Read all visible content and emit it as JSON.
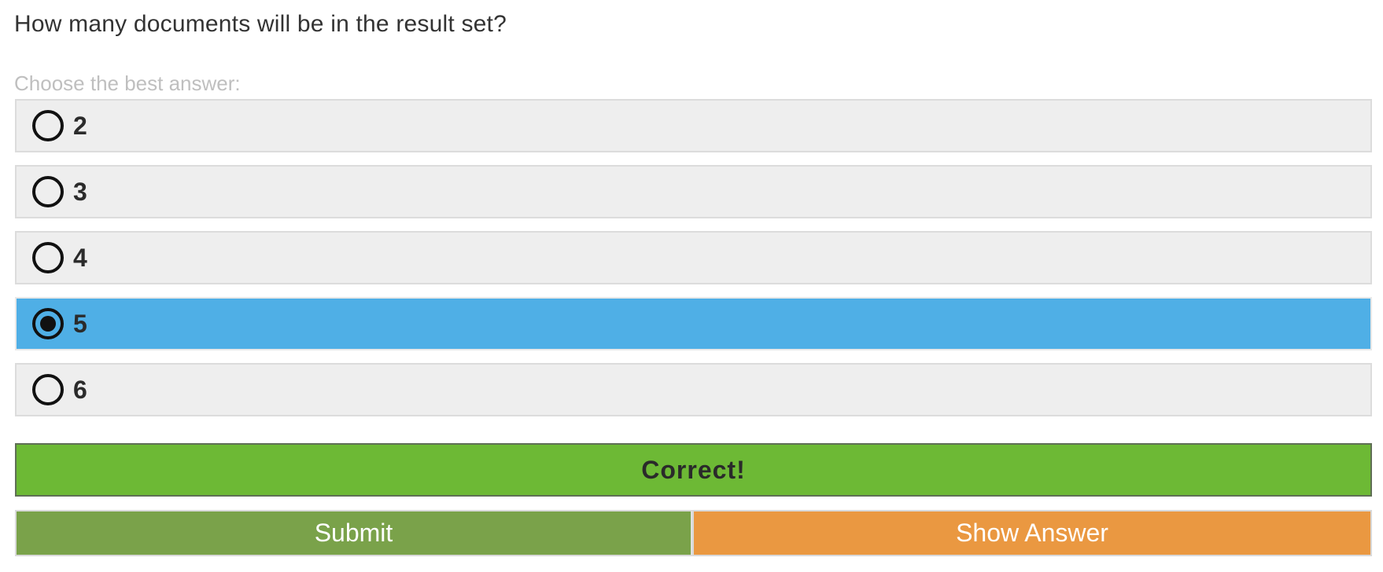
{
  "question": {
    "text": "How many documents will be in the result set?",
    "instruction": "Choose the best answer:"
  },
  "options": [
    {
      "label": "2",
      "selected": false
    },
    {
      "label": "3",
      "selected": false
    },
    {
      "label": "4",
      "selected": false
    },
    {
      "label": "5",
      "selected": true
    },
    {
      "label": "6",
      "selected": false
    }
  ],
  "feedback": {
    "text": "Correct!"
  },
  "buttons": {
    "submit_label": "Submit",
    "show_answer_label": "Show Answer"
  },
  "colors": {
    "selected_option": "#4fafe6",
    "option_bg": "#eeeeee",
    "feedback_bg": "#6db935",
    "submit_bg": "#7aa24a",
    "show_answer_bg": "#ea9841"
  }
}
